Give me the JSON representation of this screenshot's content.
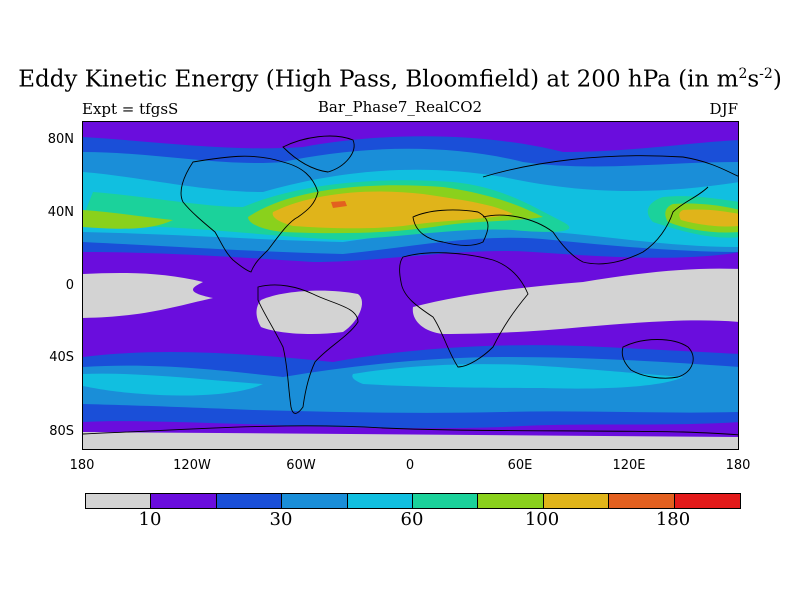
{
  "title": {
    "main": "Eddy Kinetic Energy (High Pass, Bloomfield) at 200 hPa (in m",
    "sup1": "2",
    "mid": "s",
    "sup2": "-2",
    "end": ")"
  },
  "subtitle": {
    "left": "Expt = tfgsS",
    "center": "Bar_Phase7_RealCO2",
    "right": "DJF"
  },
  "axes": {
    "y_labels": [
      "80N",
      "40N",
      "0",
      "40S",
      "80S"
    ],
    "x_labels": [
      "180",
      "120W",
      "60W",
      "0",
      "60E",
      "120E",
      "180"
    ]
  },
  "colorbar": {
    "colors": [
      "#d3d3d3",
      "#6a0ddd",
      "#1a4fd8",
      "#1a8ed8",
      "#11bfe0",
      "#1bd29b",
      "#8ad11c",
      "#e0b41a",
      "#e3601f",
      "#e31a1a"
    ],
    "labels": [
      "10",
      "30",
      "60",
      "100",
      "180"
    ]
  },
  "legend_colors": {
    "grey": "#d3d3d3",
    "purple": "#6a0ddd",
    "blue": "#1a4fd8",
    "midblue": "#1a8ed8",
    "cyan": "#11bfe0",
    "teal": "#1bd29b",
    "green": "#8ad11c",
    "orange": "#e0b41a",
    "darkorange": "#e3601f",
    "red": "#e31a1a"
  }
}
